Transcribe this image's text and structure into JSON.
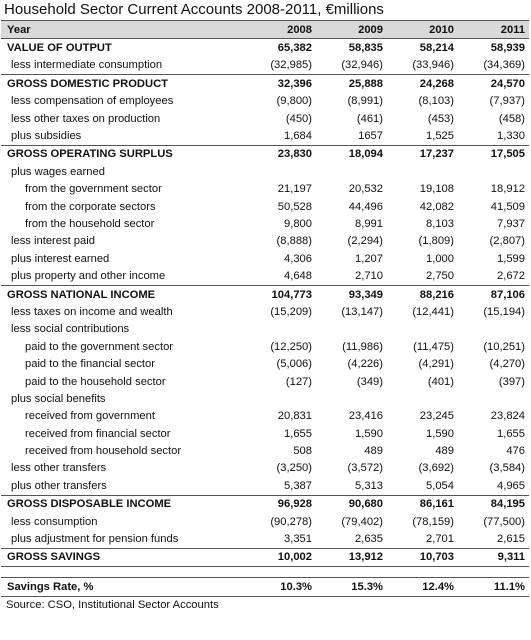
{
  "title": "Household Sector Current Accounts 2008-2011, €millions",
  "header": {
    "label": "Year",
    "years": [
      "2008",
      "2009",
      "2010",
      "2011"
    ]
  },
  "rows": [
    {
      "label": "VALUE OF OUTPUT",
      "style": "bold",
      "values": [
        "65,382",
        "58,835",
        "58,214",
        "58,939"
      ]
    },
    {
      "label": "less intermediate consumption",
      "style": "ind1",
      "values": [
        "(32,985)",
        "(32,946)",
        "(33,946)",
        "(34,369)"
      ]
    },
    {
      "label": "GROSS DOMESTIC PRODUCT",
      "style": "bold",
      "values": [
        "32,396",
        "25,888",
        "24,268",
        "24,570"
      ]
    },
    {
      "label": "less compensation of employees",
      "style": "ind1",
      "values": [
        "(9,800)",
        "(8,991)",
        "(8,103)",
        "(7,937)"
      ]
    },
    {
      "label": "less other taxes on production",
      "style": "ind1",
      "values": [
        "(450)",
        "(461)",
        "(453)",
        "(458)"
      ]
    },
    {
      "label": "plus subsidies",
      "style": "ind1",
      "values": [
        "1,684",
        "1657",
        "1,525",
        "1,330"
      ]
    },
    {
      "label": "GROSS OPERATING SURPLUS",
      "style": "bold",
      "values": [
        "23,830",
        "18,094",
        "17,237",
        "17,505"
      ]
    },
    {
      "label": "plus wages earned",
      "style": "ind1",
      "values": [
        "",
        "",
        "",
        ""
      ]
    },
    {
      "label": "from the government sector",
      "style": "ind2",
      "values": [
        "21,197",
        "20,532",
        "19,108",
        "18,912"
      ]
    },
    {
      "label": "from the corporate sectors",
      "style": "ind2",
      "values": [
        "50,528",
        "44,496",
        "42,082",
        "41,509"
      ]
    },
    {
      "label": "from the household sector",
      "style": "ind2",
      "values": [
        "9,800",
        "8,991",
        "8,103",
        "7,937"
      ]
    },
    {
      "label": "less interest paid",
      "style": "ind1",
      "values": [
        "(8,888)",
        "(2,294)",
        "(1,809)",
        "(2,807)"
      ]
    },
    {
      "label": "plus interest earned",
      "style": "ind1",
      "values": [
        "4,306",
        "1,207",
        "1,000",
        "1,599"
      ]
    },
    {
      "label": "plus property and other income",
      "style": "ind1",
      "values": [
        "4,648",
        "2,710",
        "2,750",
        "2,672"
      ]
    },
    {
      "label": "GROSS NATIONAL INCOME",
      "style": "bold",
      "values": [
        "104,773",
        "93,349",
        "88,216",
        "87,106"
      ]
    },
    {
      "label": "less taxes on income and wealth",
      "style": "ind1",
      "values": [
        "(15,209)",
        "(13,147)",
        "(12,441)",
        "(15,194)"
      ]
    },
    {
      "label": "less social contributions",
      "style": "ind1",
      "values": [
        "",
        "",
        "",
        ""
      ]
    },
    {
      "label": "paid to the government sector",
      "style": "ind2",
      "values": [
        "(12,250)",
        "(11,986)",
        "(11,475)",
        "(10,251)"
      ]
    },
    {
      "label": "paid to the financial sector",
      "style": "ind2",
      "values": [
        "(5,006)",
        "(4,226)",
        "(4,291)",
        "(4,270)"
      ]
    },
    {
      "label": "paid to the household sector",
      "style": "ind2",
      "values": [
        "(127)",
        "(349)",
        "(401)",
        "(397)"
      ]
    },
    {
      "label": "plus social benefits",
      "style": "ind1",
      "values": [
        "",
        "",
        "",
        ""
      ]
    },
    {
      "label": "received from government",
      "style": "ind2",
      "values": [
        "20,831",
        "23,416",
        "23,245",
        "23,824"
      ]
    },
    {
      "label": "received from financial sector",
      "style": "ind2",
      "values": [
        "1,655",
        "1,590",
        "1,590",
        "1,655"
      ]
    },
    {
      "label": "received from household sector",
      "style": "ind2",
      "values": [
        "508",
        "489",
        "489",
        "476"
      ]
    },
    {
      "label": "less other transfers",
      "style": "ind1",
      "values": [
        "(3,250)",
        "(3,572)",
        "(3,692)",
        "(3,584)"
      ]
    },
    {
      "label": "plus other transfers",
      "style": "ind1",
      "values": [
        "5,387",
        "5,313",
        "5,054",
        "4,965"
      ]
    },
    {
      "label": "GROSS DISPOSABLE INCOME",
      "style": "bold",
      "values": [
        "96,928",
        "90,680",
        "86,161",
        "84,195"
      ]
    },
    {
      "label": "less consumption",
      "style": "ind1",
      "values": [
        "(90,278)",
        "(79,402)",
        "(78,159)",
        "(77,500)"
      ]
    },
    {
      "label": "plus adjustment for pension funds",
      "style": "ind1",
      "values": [
        "3,351",
        "2,635",
        "2,701",
        "2,615"
      ]
    },
    {
      "label": "GROSS SAVINGS",
      "style": "bold close",
      "values": [
        "10,002",
        "13,912",
        "10,703",
        "9,311"
      ]
    }
  ],
  "savings_rate": {
    "label": "Savings Rate, %",
    "values": [
      "10.3%",
      "15.3%",
      "12.4%",
      "11.1%"
    ]
  },
  "source": "Source: CSO, Institutional Sector Accounts"
}
